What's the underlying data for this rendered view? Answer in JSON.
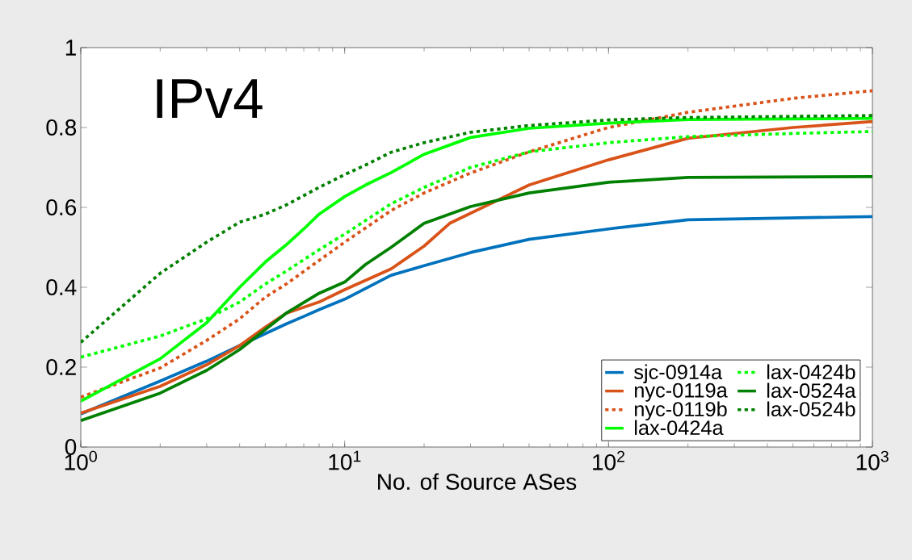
{
  "chart_data": {
    "type": "line",
    "xlabel": "No. of Source ASes",
    "annotations": [
      "IPv4"
    ],
    "log": "x",
    "grid": false,
    "legend": "bottom right",
    "marker": "none",
    "xlim": [
      1,
      1000
    ],
    "ylim": [
      0,
      1
    ],
    "xticks": [
      {
        "value": 1,
        "label": "10$^{0}$"
      },
      {
        "value": 10,
        "label": "10$^{1}$"
      },
      {
        "value": 100,
        "label": "10$^{2}$"
      },
      {
        "value": 1000,
        "label": "10$^{3}$"
      }
    ],
    "yticks": [
      0,
      0.2,
      0.4,
      0.6,
      0.8,
      1
    ],
    "series": [
      {
        "name": "sjc-0914a",
        "color": "#0072bd",
        "line_style": "solid",
        "x": [
          1,
          2,
          3,
          4,
          6,
          7,
          8,
          10,
          15,
          20,
          30,
          50,
          100,
          200,
          1000
        ],
        "values": [
          0.083,
          0.165,
          0.215,
          0.254,
          0.308,
          0.327,
          0.344,
          0.37,
          0.43,
          0.454,
          0.487,
          0.52,
          0.546,
          0.569,
          0.577
        ]
      },
      {
        "name": "nyc-0119a",
        "color": "#d95319",
        "line_style": "solid",
        "x": [
          1,
          2,
          3,
          4,
          5,
          6,
          8,
          10,
          15,
          20,
          25,
          50,
          100,
          200,
          500,
          1000
        ],
        "values": [
          0.085,
          0.152,
          0.206,
          0.254,
          0.3,
          0.335,
          0.363,
          0.394,
          0.446,
          0.503,
          0.56,
          0.656,
          0.719,
          0.773,
          0.8,
          0.815
        ]
      },
      {
        "name": "nyc-0119b",
        "color": "#d95319",
        "line_style": "dotted",
        "x": [
          1,
          2,
          3,
          4,
          5,
          6,
          8,
          10,
          15,
          20,
          30,
          50,
          100,
          200,
          500,
          1000
        ],
        "values": [
          0.125,
          0.198,
          0.267,
          0.321,
          0.375,
          0.408,
          0.467,
          0.513,
          0.592,
          0.636,
          0.686,
          0.739,
          0.8,
          0.838,
          0.873,
          0.892
        ]
      },
      {
        "name": "lax-0424a",
        "color": "#00ff00",
        "line_style": "solid",
        "x": [
          1,
          2,
          3,
          4,
          5,
          6,
          7,
          8,
          10,
          12,
          15,
          20,
          30,
          50,
          100,
          200,
          1000
        ],
        "values": [
          0.115,
          0.221,
          0.311,
          0.4,
          0.463,
          0.506,
          0.546,
          0.583,
          0.627,
          0.656,
          0.687,
          0.733,
          0.775,
          0.798,
          0.811,
          0.82,
          0.823
        ]
      },
      {
        "name": "lax-0424b",
        "color": "#00ff00",
        "line_style": "dotted",
        "x": [
          1,
          2,
          3,
          4,
          5,
          6,
          8,
          10,
          15,
          20,
          30,
          50,
          100,
          200,
          500,
          1000
        ],
        "values": [
          0.225,
          0.278,
          0.321,
          0.363,
          0.408,
          0.44,
          0.494,
          0.533,
          0.609,
          0.65,
          0.7,
          0.739,
          0.762,
          0.777,
          0.785,
          0.79
        ]
      },
      {
        "name": "lax-0524a",
        "color": "#008000",
        "line_style": "solid",
        "x": [
          1,
          2,
          3,
          4,
          5,
          6,
          8,
          10,
          12,
          15,
          20,
          30,
          50,
          100,
          200,
          1000
        ],
        "values": [
          0.066,
          0.135,
          0.192,
          0.244,
          0.294,
          0.335,
          0.385,
          0.413,
          0.457,
          0.5,
          0.56,
          0.602,
          0.636,
          0.663,
          0.675,
          0.677
        ]
      },
      {
        "name": "lax-0524b",
        "color": "#008000",
        "line_style": "dotted",
        "x": [
          1,
          2,
          3,
          4,
          5,
          6,
          8,
          10,
          12,
          15,
          20,
          30,
          50,
          100,
          200,
          1000
        ],
        "values": [
          0.262,
          0.435,
          0.513,
          0.563,
          0.583,
          0.606,
          0.65,
          0.682,
          0.706,
          0.738,
          0.762,
          0.788,
          0.805,
          0.819,
          0.825,
          0.83
        ]
      }
    ]
  }
}
